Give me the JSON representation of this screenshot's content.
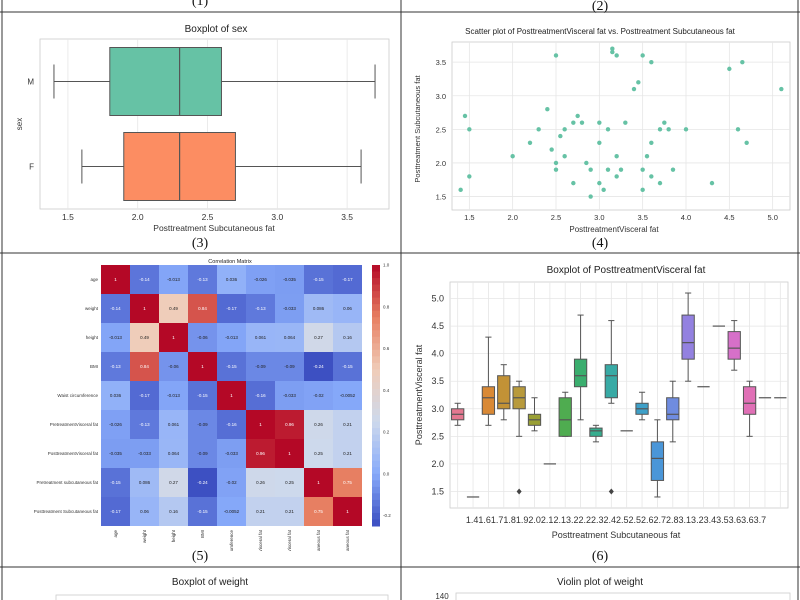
{
  "panel_labels": [
    "(1)",
    "(2)",
    "(3)",
    "(4)",
    "(5)",
    "(6)"
  ],
  "colors": {
    "teal": "#66c2a5",
    "orange": "#fc8d62",
    "grid": "#e6e6e6",
    "frame": "#333333"
  },
  "chart_data": [
    {
      "id": "boxplot-sex",
      "type": "boxplot",
      "title": "Boxplot of sex",
      "xlabel": "Posttreatment Subcutaneous fat",
      "ylabel": "sex",
      "xlim": [
        1.3,
        3.8
      ],
      "xticks": [
        "1.5",
        "2.0",
        "2.5",
        "3.0",
        "3.5"
      ],
      "categories": [
        "M",
        "F"
      ],
      "boxes": [
        {
          "category": "M",
          "whisker_low": 1.4,
          "q1": 1.8,
          "median": 2.3,
          "q3": 2.6,
          "whisker_high": 3.7,
          "color": "#66c2a5"
        },
        {
          "category": "F",
          "whisker_low": 1.6,
          "q1": 1.9,
          "median": 2.3,
          "q3": 2.7,
          "whisker_high": 3.6,
          "color": "#fc8d62"
        }
      ]
    },
    {
      "id": "scatter-visceral-subcut",
      "type": "scatter",
      "title": "Scatter plot of PosttreatmentVisceral fat vs. Posttreatment Subcutaneous fat",
      "xlabel": "PosttreatmentVisceral fat",
      "ylabel": "Posttreatment Subcutaneous fat",
      "xlim": [
        1.3,
        5.2
      ],
      "ylim": [
        1.3,
        3.8
      ],
      "xticks": [
        "1.5",
        "2.0",
        "2.5",
        "3.0",
        "3.5",
        "4.0",
        "4.5",
        "5.0"
      ],
      "yticks": [
        "1.5",
        "2.0",
        "2.5",
        "3.0",
        "3.5"
      ],
      "points": [
        [
          1.4,
          1.6
        ],
        [
          1.45,
          2.7
        ],
        [
          1.5,
          2.5
        ],
        [
          1.5,
          1.8
        ],
        [
          2.0,
          2.1
        ],
        [
          2.2,
          2.3
        ],
        [
          2.3,
          2.5
        ],
        [
          2.4,
          2.8
        ],
        [
          2.45,
          2.2
        ],
        [
          2.5,
          3.6
        ],
        [
          2.5,
          2.0
        ],
        [
          2.5,
          1.9
        ],
        [
          2.55,
          2.4
        ],
        [
          2.6,
          2.5
        ],
        [
          2.6,
          2.1
        ],
        [
          2.7,
          1.7
        ],
        [
          2.7,
          2.6
        ],
        [
          2.75,
          2.7
        ],
        [
          2.8,
          2.6
        ],
        [
          2.85,
          2.0
        ],
        [
          2.9,
          1.9
        ],
        [
          2.9,
          1.5
        ],
        [
          3.0,
          2.3
        ],
        [
          3.0,
          2.6
        ],
        [
          3.0,
          1.7
        ],
        [
          3.05,
          1.6
        ],
        [
          3.1,
          2.5
        ],
        [
          3.1,
          1.9
        ],
        [
          3.15,
          3.65
        ],
        [
          3.15,
          3.7
        ],
        [
          3.2,
          3.6
        ],
        [
          3.2,
          2.1
        ],
        [
          3.2,
          1.8
        ],
        [
          3.25,
          1.9
        ],
        [
          3.3,
          2.6
        ],
        [
          3.4,
          3.1
        ],
        [
          3.45,
          3.2
        ],
        [
          3.5,
          3.6
        ],
        [
          3.5,
          1.9
        ],
        [
          3.5,
          1.6
        ],
        [
          3.55,
          2.1
        ],
        [
          3.6,
          2.3
        ],
        [
          3.6,
          1.8
        ],
        [
          3.6,
          3.5
        ],
        [
          3.7,
          2.5
        ],
        [
          3.7,
          1.7
        ],
        [
          3.75,
          2.6
        ],
        [
          3.8,
          2.5
        ],
        [
          3.85,
          1.9
        ],
        [
          4.0,
          2.5
        ],
        [
          4.3,
          1.7
        ],
        [
          4.5,
          3.4
        ],
        [
          4.6,
          2.5
        ],
        [
          4.65,
          3.5
        ],
        [
          4.7,
          2.3
        ],
        [
          5.1,
          3.1
        ]
      ]
    },
    {
      "id": "correlation-matrix",
      "type": "heatmap",
      "title": "Correlation Matrix",
      "labels": [
        "age",
        "weight",
        "height",
        "BMI",
        "Waist circumference",
        "PretreatmentVisceral fat",
        "PosttreatmentVisceral fat",
        "Pretreatment subcutaneous fat",
        "Posttreatment Subcutaneous fat"
      ],
      "matrix": [
        [
          1,
          -0.14,
          -0.013,
          -0.13,
          0.036,
          -0.026,
          -0.035,
          -0.15,
          -0.17
        ],
        [
          -0.14,
          1,
          0.49,
          0.84,
          -0.17,
          -0.13,
          -0.033,
          0.086,
          0.06
        ],
        [
          -0.013,
          0.49,
          1,
          -0.06,
          -0.013,
          0.061,
          0.064,
          0.27,
          0.16
        ],
        [
          -0.13,
          0.84,
          -0.06,
          1,
          -0.15,
          -0.09,
          -0.09,
          -0.24,
          -0.15
        ],
        [
          0.036,
          -0.17,
          -0.013,
          -0.15,
          1,
          -0.16,
          -0.033,
          -0.02,
          -0.0052
        ],
        [
          -0.026,
          -0.13,
          0.061,
          -0.09,
          -0.16,
          1,
          0.96,
          0.26,
          0.21
        ],
        [
          -0.035,
          -0.033,
          0.064,
          -0.09,
          -0.033,
          0.96,
          1,
          0.25,
          0.21
        ],
        [
          -0.15,
          0.086,
          0.27,
          -0.24,
          -0.02,
          0.26,
          0.25,
          1,
          0.75
        ],
        [
          -0.17,
          0.06,
          0.16,
          -0.15,
          -0.0052,
          0.21,
          0.21,
          0.75,
          1
        ]
      ],
      "cells": [
        [
          "1",
          "-0.14",
          "-0.013",
          "-0.13",
          "0.036",
          "-0.026",
          "-0.035",
          "-0.15",
          "-0.17"
        ],
        [
          "-0.14",
          "1",
          "0.49",
          "0.84",
          "-0.17",
          "-0.13",
          "-0.033",
          "0.086",
          "0.06"
        ],
        [
          "-0.013",
          "0.49",
          "1",
          "-0.06",
          "-0.013",
          "0.061",
          "0.064",
          "0.27",
          "0.16"
        ],
        [
          "-0.13",
          "0.84",
          "-0.06",
          "1",
          "-0.15",
          "-0.09",
          "-0.09",
          "-0.24",
          "-0.15"
        ],
        [
          "0.036",
          "-0.17",
          "-0.013",
          "-0.15",
          "1",
          "-0.16",
          "-0.033",
          "-0.02",
          "-0.0052"
        ],
        [
          "-0.026",
          "-0.13",
          "0.061",
          "-0.09",
          "-0.16",
          "1",
          "0.96",
          "0.26",
          "0.21"
        ],
        [
          "-0.035",
          "-0.033",
          "0.064",
          "-0.09",
          "-0.033",
          "0.96",
          "1",
          "0.25",
          "0.21"
        ],
        [
          "-0.15",
          "0.086",
          "0.27",
          "-0.24",
          "-0.02",
          "0.26",
          "0.25",
          "1",
          "0.75"
        ],
        [
          "-0.17",
          "0.06",
          "0.16",
          "-0.15",
          "-0.0052",
          "0.21",
          "0.21",
          "0.75",
          "1"
        ]
      ],
      "colorbar_ticks": [
        "1.0",
        "0.8",
        "0.6",
        "0.4",
        "0.2",
        "0.0",
        "-0.2"
      ],
      "vmin": -0.25,
      "vmax": 1.0
    },
    {
      "id": "boxplot-visceral",
      "type": "boxplot",
      "title": "Boxplot of PosttreatmentVisceral fat",
      "xlabel": "Posttreatment Subcutaneous fat",
      "ylabel": "PosttreatmentVisceral fat",
      "ylim": [
        1.2,
        5.3
      ],
      "yticks": [
        "1.5",
        "2.0",
        "2.5",
        "3.0",
        "3.5",
        "4.0",
        "4.5",
        "5.0"
      ],
      "xtick_text": "1.41.61.71.81.92.02.12.13.22.22.32.42.52.52.62.72.83.13.23.43.53.63.63.7",
      "boxes": [
        {
          "whisker_low": 2.7,
          "q1": 2.8,
          "median": 2.9,
          "q3": 3.0,
          "whisker_high": 3.1,
          "color": "#e47890"
        },
        {
          "whisker_low": 1.4,
          "q1": 1.4,
          "median": 1.4,
          "q3": 1.4,
          "whisker_high": 1.4,
          "color": "#c98a5a"
        },
        {
          "whisker_low": 2.7,
          "q1": 2.9,
          "median": 3.2,
          "q3": 3.4,
          "whisker_high": 4.3,
          "color": "#d98935"
        },
        {
          "whisker_low": 2.8,
          "q1": 3.0,
          "median": 3.1,
          "q3": 3.6,
          "whisker_high": 3.8,
          "color": "#c29236"
        },
        {
          "whisker_low": 2.5,
          "q1": 3.0,
          "median": 3.2,
          "q3": 3.4,
          "whisker_high": 3.5,
          "color": "#b89a3c",
          "outliers": [
            1.5
          ]
        },
        {
          "whisker_low": 2.6,
          "q1": 2.7,
          "median": 2.8,
          "q3": 2.9,
          "whisker_high": 3.2,
          "color": "#9aa035"
        },
        {
          "whisker_low": 2.0,
          "q1": 2.0,
          "median": 2.0,
          "q3": 2.0,
          "whisker_high": 2.0,
          "color": "#7aa53c"
        },
        {
          "whisker_low": 2.5,
          "q1": 2.5,
          "median": 2.8,
          "q3": 3.2,
          "whisker_high": 3.3,
          "color": "#4fac50"
        },
        {
          "whisker_low": 2.8,
          "q1": 3.4,
          "median": 3.6,
          "q3": 3.9,
          "whisker_high": 4.7,
          "color": "#3aae6e"
        },
        {
          "whisker_low": 2.4,
          "q1": 2.5,
          "median": 2.6,
          "q3": 2.65,
          "whisker_high": 2.7,
          "color": "#36ad8e"
        },
        {
          "whisker_low": 3.1,
          "q1": 3.2,
          "median": 3.6,
          "q3": 3.8,
          "whisker_high": 4.6,
          "color": "#38aaa5",
          "outliers": [
            1.5
          ]
        },
        {
          "whisker_low": 2.6,
          "q1": 2.6,
          "median": 2.6,
          "q3": 2.6,
          "whisker_high": 2.6,
          "color": "#3aa6b9"
        },
        {
          "whisker_low": 2.8,
          "q1": 2.9,
          "median": 3.0,
          "q3": 3.1,
          "whisker_high": 3.3,
          "color": "#3ea0c8"
        },
        {
          "whisker_low": 1.4,
          "q1": 1.7,
          "median": 2.1,
          "q3": 2.4,
          "whisker_high": 2.8,
          "color": "#4a96d8"
        },
        {
          "whisker_low": 2.4,
          "q1": 2.8,
          "median": 2.9,
          "q3": 3.2,
          "whisker_high": 3.5,
          "color": "#6f8ce0"
        },
        {
          "whisker_low": 3.5,
          "q1": 3.9,
          "median": 4.2,
          "q3": 4.7,
          "whisker_high": 5.1,
          "color": "#9381e0"
        },
        {
          "whisker_low": 3.4,
          "q1": 3.4,
          "median": 3.4,
          "q3": 3.4,
          "whisker_high": 3.4,
          "color": "#b07ade"
        },
        {
          "whisker_low": 4.5,
          "q1": 4.5,
          "median": 4.5,
          "q3": 4.5,
          "whisker_high": 4.5,
          "color": "#c673d6"
        },
        {
          "whisker_low": 3.7,
          "q1": 3.9,
          "median": 4.1,
          "q3": 4.4,
          "whisker_high": 4.6,
          "color": "#d670c9"
        },
        {
          "whisker_low": 2.5,
          "q1": 2.9,
          "median": 3.1,
          "q3": 3.4,
          "whisker_high": 3.5,
          "color": "#e070b6"
        },
        {
          "whisker_low": 3.2,
          "q1": 3.2,
          "median": 3.2,
          "q3": 3.2,
          "whisker_high": 3.2,
          "color": "#e67a9c"
        },
        {
          "whisker_low": 3.2,
          "q1": 3.2,
          "median": 3.2,
          "q3": 3.2,
          "whisker_high": 3.2,
          "color": "#e58088"
        }
      ]
    },
    {
      "id": "boxplot-weight",
      "type": "boxplot",
      "title": "Boxplot of weight"
    },
    {
      "id": "violin-weight",
      "type": "violin",
      "title": "Violin plot of weight",
      "yticks": [
        "140"
      ]
    }
  ]
}
